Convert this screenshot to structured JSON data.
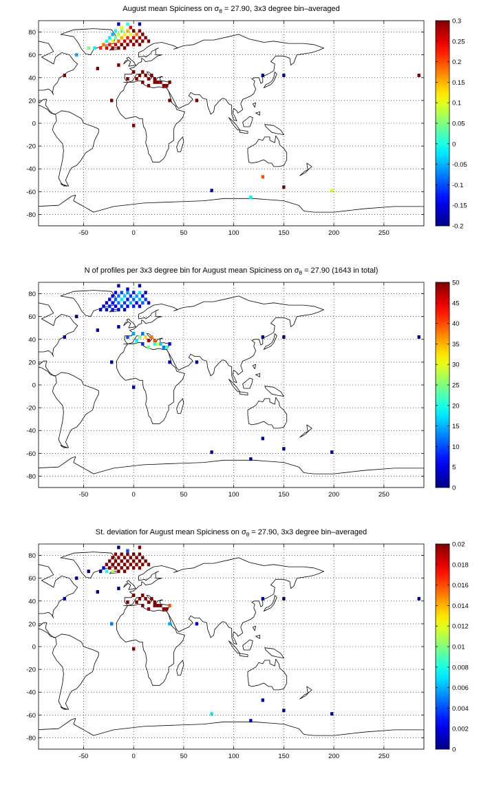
{
  "chart_data": [
    {
      "type": "heatmap",
      "title_prefix": "August mean Spiciness on ",
      "title_symbol": "σ",
      "title_subscript": "θ",
      "title_suffix": " = 27.90, 3x3 degree bin–averaged",
      "xticks": [
        -50,
        0,
        50,
        100,
        150,
        200,
        250
      ],
      "yticks": [
        80,
        60,
        40,
        20,
        0,
        -20,
        -40,
        -60,
        -80
      ],
      "xlim": [
        -95,
        290
      ],
      "ylim": [
        -90,
        90
      ],
      "grid": true,
      "colorbar": {
        "min": -0.2,
        "max": 0.3,
        "ticks": [
          -0.2,
          -0.15,
          -0.1,
          -0.05,
          0,
          0.05,
          0.1,
          0.15,
          0.2,
          0.25,
          0.3
        ],
        "tick_labels": [
          "-0.2",
          "-0.15",
          "-0.1",
          "-0.05",
          "0",
          "0.05",
          "0.1",
          "0.15",
          "0.2",
          "0.25",
          "0.3"
        ]
      },
      "bins": [
        [
          -15,
          87,
          -0.17
        ],
        [
          -6,
          87,
          0.0
        ],
        [
          -12,
          84,
          0.1
        ],
        [
          -3,
          84,
          0.25
        ],
        [
          6,
          87,
          -0.18
        ],
        [
          -18,
          81,
          0.0
        ],
        [
          -12,
          81,
          0.05
        ],
        [
          -6,
          81,
          0.15
        ],
        [
          0,
          81,
          0.3
        ],
        [
          6,
          81,
          0.28
        ],
        [
          -21,
          78,
          -0.05
        ],
        [
          -15,
          78,
          0.08
        ],
        [
          -9,
          78,
          0.12
        ],
        [
          -3,
          78,
          0.1
        ],
        [
          3,
          78,
          0.18
        ],
        [
          9,
          78,
          0.3
        ],
        [
          -24,
          75,
          -0.02
        ],
        [
          -18,
          75,
          0.05
        ],
        [
          -12,
          75,
          0.15
        ],
        [
          -6,
          75,
          0.22
        ],
        [
          0,
          75,
          0.25
        ],
        [
          6,
          75,
          0.28
        ],
        [
          12,
          75,
          0.3
        ],
        [
          -27,
          72,
          0.0
        ],
        [
          -21,
          72,
          0.1
        ],
        [
          -15,
          72,
          0.2
        ],
        [
          -9,
          72,
          0.25
        ],
        [
          -3,
          72,
          0.28
        ],
        [
          3,
          72,
          0.3
        ],
        [
          9,
          72,
          0.3
        ],
        [
          15,
          72,
          0.3
        ],
        [
          -30,
          69,
          0.18
        ],
        [
          -24,
          69,
          0.22
        ],
        [
          -18,
          69,
          0.25
        ],
        [
          -12,
          69,
          0.3
        ],
        [
          -6,
          69,
          0.3
        ],
        [
          0,
          69,
          0.28
        ],
        [
          6,
          69,
          0.3
        ],
        [
          -33,
          66,
          0.22
        ],
        [
          -27,
          66,
          0.25
        ],
        [
          -21,
          66,
          0.28
        ],
        [
          -15,
          66,
          0.3
        ],
        [
          -9,
          66,
          0.3
        ],
        [
          -45,
          66,
          0.05
        ],
        [
          -39,
          66,
          -0.02
        ],
        [
          -57,
          60,
          -0.05
        ],
        [
          -36,
          48,
          0.3
        ],
        [
          -69,
          42,
          0.3
        ],
        [
          -15,
          51,
          0.3
        ],
        [
          0,
          45,
          0.3
        ],
        [
          6,
          42,
          0.3
        ],
        [
          9,
          45,
          0.3
        ],
        [
          12,
          42,
          0.3
        ],
        [
          15,
          39,
          0.3
        ],
        [
          18,
          42,
          0.3
        ],
        [
          21,
          39,
          0.3
        ],
        [
          24,
          36,
          0.3
        ],
        [
          27,
          36,
          0.3
        ],
        [
          30,
          33,
          0.3
        ],
        [
          33,
          33,
          0.3
        ],
        [
          36,
          36,
          0.3
        ],
        [
          3,
          39,
          0.3
        ],
        [
          9,
          36,
          0.3
        ],
        [
          15,
          33,
          0.3
        ],
        [
          21,
          36,
          0.3
        ],
        [
          -6,
          39,
          0.3
        ],
        [
          -22,
          20,
          0.3
        ],
        [
          36,
          20,
          0.3
        ],
        [
          63,
          20,
          0.3
        ],
        [
          0,
          -2,
          0.3
        ],
        [
          129,
          42,
          -0.18
        ],
        [
          150,
          42,
          -0.17
        ],
        [
          285,
          42,
          0.3
        ],
        [
          78,
          -59,
          -0.18
        ],
        [
          117,
          -65,
          -0.02
        ],
        [
          129,
          -47,
          0.2
        ],
        [
          150,
          -56,
          0.3
        ],
        [
          198,
          -59,
          0.1
        ]
      ]
    },
    {
      "type": "heatmap",
      "title_prefix": "N of profiles per 3x3 degree bin for August mean Spiciness on ",
      "title_symbol": "σ",
      "title_subscript": "θ",
      "title_suffix": " = 27.90 (1643 in total)",
      "xticks": [
        -50,
        0,
        50,
        100,
        150,
        200,
        250
      ],
      "yticks": [
        80,
        60,
        40,
        20,
        0,
        -20,
        -40,
        -60,
        -80
      ],
      "xlim": [
        -95,
        290
      ],
      "ylim": [
        -90,
        90
      ],
      "grid": true,
      "colorbar": {
        "min": 0,
        "max": 50,
        "ticks": [
          0,
          5,
          10,
          15,
          20,
          25,
          30,
          35,
          40,
          45,
          50
        ],
        "tick_labels": [
          "0",
          "5",
          "10",
          "15",
          "20",
          "25",
          "30",
          "35",
          "40",
          "45",
          "50"
        ]
      },
      "bins": [
        [
          -15,
          87,
          2
        ],
        [
          6,
          87,
          2
        ],
        [
          -6,
          84,
          4
        ],
        [
          -18,
          81,
          6
        ],
        [
          -12,
          81,
          10
        ],
        [
          -6,
          81,
          14
        ],
        [
          0,
          81,
          8
        ],
        [
          6,
          81,
          18
        ],
        [
          12,
          81,
          5
        ],
        [
          -21,
          78,
          4
        ],
        [
          -15,
          78,
          12
        ],
        [
          -9,
          78,
          16
        ],
        [
          -3,
          78,
          9
        ],
        [
          3,
          78,
          14
        ],
        [
          9,
          78,
          6
        ],
        [
          -24,
          75,
          5
        ],
        [
          -18,
          75,
          11
        ],
        [
          -12,
          75,
          18
        ],
        [
          -6,
          75,
          7
        ],
        [
          0,
          75,
          12
        ],
        [
          6,
          75,
          15
        ],
        [
          12,
          75,
          9
        ],
        [
          -27,
          72,
          3
        ],
        [
          -21,
          72,
          7
        ],
        [
          -15,
          72,
          12
        ],
        [
          -9,
          72,
          9
        ],
        [
          -3,
          72,
          15
        ],
        [
          3,
          72,
          6
        ],
        [
          9,
          72,
          11
        ],
        [
          15,
          72,
          4
        ],
        [
          -30,
          69,
          4
        ],
        [
          -24,
          69,
          8
        ],
        [
          -18,
          69,
          5
        ],
        [
          -12,
          69,
          10
        ],
        [
          -6,
          69,
          6
        ],
        [
          0,
          69,
          8
        ],
        [
          6,
          69,
          4
        ],
        [
          -33,
          66,
          3
        ],
        [
          -27,
          66,
          5
        ],
        [
          -21,
          66,
          7
        ],
        [
          -15,
          66,
          4
        ],
        [
          -9,
          66,
          3
        ],
        [
          -57,
          60,
          2
        ],
        [
          -36,
          48,
          3
        ],
        [
          -69,
          42,
          2
        ],
        [
          -15,
          51,
          2
        ],
        [
          -6,
          42,
          10
        ],
        [
          0,
          45,
          15
        ],
        [
          3,
          39,
          18
        ],
        [
          6,
          42,
          26
        ],
        [
          9,
          45,
          12
        ],
        [
          9,
          36,
          8
        ],
        [
          12,
          42,
          33
        ],
        [
          15,
          39,
          48
        ],
        [
          15,
          33,
          24
        ],
        [
          18,
          42,
          38
        ],
        [
          21,
          39,
          40
        ],
        [
          21,
          36,
          20
        ],
        [
          24,
          36,
          30
        ],
        [
          27,
          36,
          16
        ],
        [
          30,
          33,
          12
        ],
        [
          33,
          33,
          22
        ],
        [
          36,
          36,
          6
        ],
        [
          -22,
          20,
          2
        ],
        [
          36,
          20,
          3
        ],
        [
          63,
          20,
          2
        ],
        [
          0,
          -2,
          2
        ],
        [
          129,
          42,
          2
        ],
        [
          150,
          42,
          2
        ],
        [
          285,
          42,
          2
        ],
        [
          78,
          -59,
          1
        ],
        [
          117,
          -65,
          1
        ],
        [
          129,
          -47,
          1
        ],
        [
          150,
          -56,
          2
        ],
        [
          198,
          -59,
          1
        ]
      ]
    },
    {
      "type": "heatmap",
      "title_prefix": "St. deviation for August mean Spiciness on ",
      "title_symbol": "σ",
      "title_subscript": "θ",
      "title_suffix": " = 27.90, 3x3 degree bin–averaged",
      "xticks": [
        -50,
        0,
        50,
        100,
        150,
        200,
        250
      ],
      "yticks": [
        80,
        60,
        40,
        20,
        0,
        -20,
        -40,
        -60,
        -80
      ],
      "xlim": [
        -95,
        290
      ],
      "ylim": [
        -90,
        90
      ],
      "grid": true,
      "colorbar": {
        "min": 0,
        "max": 0.02,
        "ticks": [
          0,
          0.002,
          0.004,
          0.006,
          0.008,
          0.01,
          0.012,
          0.014,
          0.016,
          0.018,
          0.02
        ],
        "tick_labels": [
          "0",
          "0.002",
          "0.004",
          "0.006",
          "0.008",
          "0.01",
          "0.012",
          "0.014",
          "0.016",
          "0.018",
          "0.02"
        ]
      },
      "bins": [
        [
          -15,
          87,
          0.0
        ],
        [
          6,
          87,
          0.02
        ],
        [
          -6,
          84,
          0.004
        ],
        [
          -18,
          81,
          0.02
        ],
        [
          -12,
          81,
          0.02
        ],
        [
          -6,
          81,
          0.02
        ],
        [
          0,
          81,
          0.02
        ],
        [
          6,
          81,
          0.02
        ],
        [
          -21,
          78,
          0.02
        ],
        [
          -15,
          78,
          0.02
        ],
        [
          -9,
          78,
          0.02
        ],
        [
          -3,
          78,
          0.02
        ],
        [
          3,
          78,
          0.02
        ],
        [
          9,
          78,
          0.02
        ],
        [
          -24,
          75,
          0.02
        ],
        [
          -18,
          75,
          0.02
        ],
        [
          -12,
          75,
          0.02
        ],
        [
          -6,
          75,
          0.02
        ],
        [
          0,
          75,
          0.02
        ],
        [
          6,
          75,
          0.02
        ],
        [
          12,
          75,
          0.02
        ],
        [
          -27,
          72,
          0.02
        ],
        [
          -21,
          72,
          0.02
        ],
        [
          -15,
          72,
          0.02
        ],
        [
          -9,
          72,
          0.02
        ],
        [
          -3,
          72,
          0.02
        ],
        [
          3,
          72,
          0.02
        ],
        [
          9,
          72,
          0.02
        ],
        [
          15,
          72,
          0.02
        ],
        [
          -30,
          69,
          0.002
        ],
        [
          -24,
          69,
          0.02
        ],
        [
          -18,
          69,
          0.02
        ],
        [
          -12,
          69,
          0.02
        ],
        [
          -6,
          69,
          0.02
        ],
        [
          0,
          69,
          0.02
        ],
        [
          6,
          69,
          0.02
        ],
        [
          -33,
          66,
          0.0
        ],
        [
          -27,
          66,
          0.008
        ],
        [
          -21,
          66,
          0.011
        ],
        [
          -15,
          66,
          0.02
        ],
        [
          -9,
          66,
          0.02
        ],
        [
          -45,
          66,
          0.0
        ],
        [
          -57,
          60,
          0.001
        ],
        [
          -36,
          48,
          0.0
        ],
        [
          -69,
          42,
          0.001
        ],
        [
          -15,
          51,
          0.0
        ],
        [
          0,
          45,
          0.02
        ],
        [
          6,
          42,
          0.02
        ],
        [
          9,
          45,
          0.02
        ],
        [
          12,
          42,
          0.02
        ],
        [
          15,
          39,
          0.02
        ],
        [
          18,
          42,
          0.02
        ],
        [
          21,
          39,
          0.02
        ],
        [
          24,
          36,
          0.02
        ],
        [
          27,
          36,
          0.02
        ],
        [
          30,
          33,
          0.02
        ],
        [
          33,
          33,
          0.02
        ],
        [
          36,
          36,
          0.016
        ],
        [
          3,
          39,
          0.02
        ],
        [
          9,
          36,
          0.02
        ],
        [
          15,
          33,
          0.02
        ],
        [
          21,
          36,
          0.02
        ],
        [
          -6,
          39,
          0.02
        ],
        [
          -22,
          20,
          0.005
        ],
        [
          36,
          20,
          0.006
        ],
        [
          63,
          20,
          0.002
        ],
        [
          0,
          -2,
          0.02
        ],
        [
          129,
          42,
          0.001
        ],
        [
          150,
          42,
          0.0
        ],
        [
          285,
          42,
          0.001
        ],
        [
          78,
          -59,
          0.007
        ],
        [
          117,
          -65,
          0.001
        ],
        [
          129,
          -47,
          0.001
        ],
        [
          150,
          -56,
          0.001
        ],
        [
          198,
          -59,
          0.001
        ]
      ]
    }
  ]
}
